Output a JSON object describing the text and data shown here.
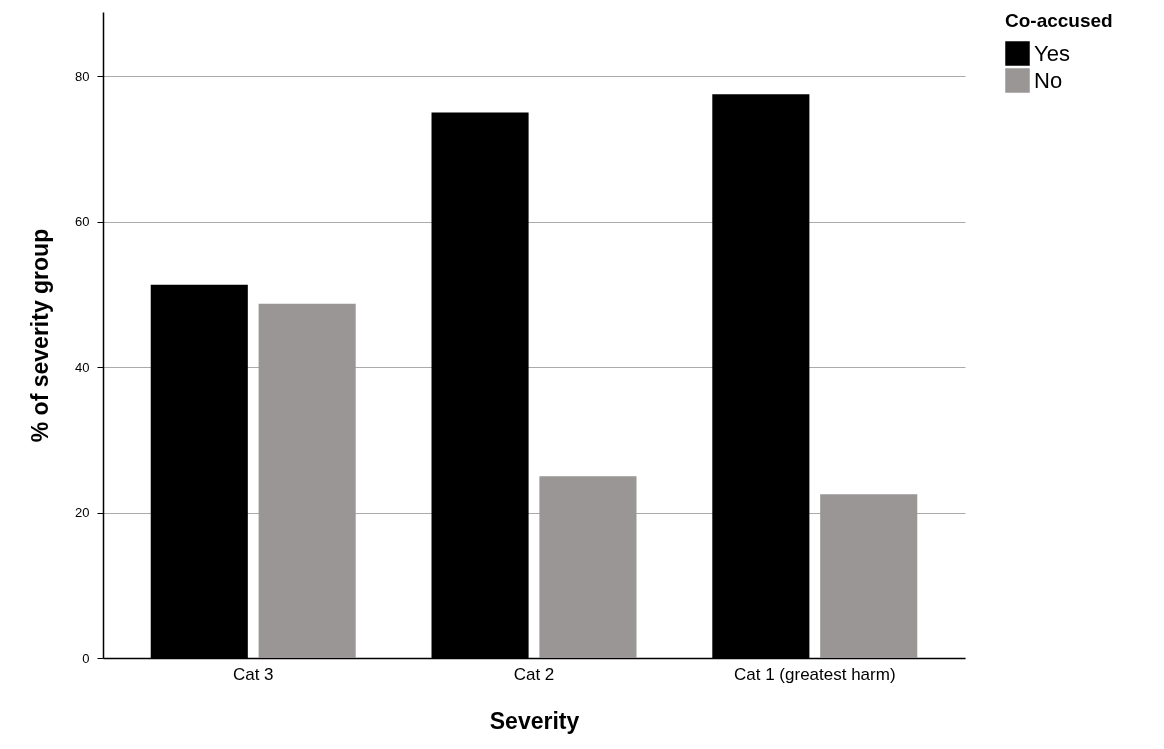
{
  "chart_data": {
    "type": "bar",
    "xlabel": "Severity",
    "ylabel": "% of severity group",
    "legend_title": "Co-accused",
    "categories": [
      "Cat 3",
      "Cat 2",
      "Cat 1 (greatest harm)"
    ],
    "series": [
      {
        "name": "Yes",
        "color": "#000000",
        "values": [
          51.3,
          75,
          77.5
        ]
      },
      {
        "name": "No",
        "color": "#999695",
        "values": [
          48.7,
          25,
          22.5
        ]
      }
    ],
    "ylim": [
      0,
      88.8
    ],
    "yticks": [
      0,
      20,
      40,
      60,
      80
    ],
    "grid": "y",
    "legend": "top right"
  }
}
